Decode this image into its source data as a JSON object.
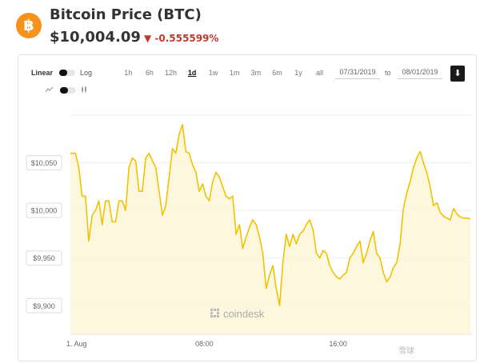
{
  "header": {
    "logo_symbol": "฿",
    "title": "Bitcoin Price (BTC)",
    "price": "$10,004.09",
    "change_arrow": "▼",
    "change": "-0.555599%",
    "change_color": "#c0392b",
    "brand_color": "#f7931a"
  },
  "controls": {
    "scale_linear": "Linear",
    "scale_log": "Log",
    "chart_type_icons": [
      "line-chart-icon",
      "candlestick-icon"
    ],
    "ranges": [
      "1h",
      "6h",
      "12h",
      "1d",
      "1w",
      "1m",
      "3m",
      "6m",
      "1y",
      "all"
    ],
    "active_range": "1d",
    "date_from": "07/31/2019",
    "date_to_label": "to",
    "date_to": "08/01/2019",
    "download_icon": "download-icon"
  },
  "watermark": "coindesk",
  "corner_mark": "雪球",
  "chart_data": {
    "type": "area",
    "title": "",
    "xlabel": "",
    "ylabel": "",
    "line_color": "#f2c200",
    "fill_color": "#fdf6d8",
    "x_ticks": [
      "1. Aug",
      "08:00",
      "16:00"
    ],
    "y_ticks": [
      "$9,900",
      "$9,950",
      "$10,000",
      "$10,050"
    ],
    "y_tick_values": [
      9900,
      9950,
      10000,
      10050
    ],
    "ylim": [
      9870,
      10100
    ],
    "x_range_hours": [
      0,
      24
    ],
    "grid": true,
    "series": [
      {
        "x": [
          0,
          0.3,
          0.5,
          0.7,
          0.9,
          1.1,
          1.3,
          1.5,
          1.7,
          1.9,
          2.1,
          2.3,
          2.5,
          2.7,
          2.9,
          3.1,
          3.3,
          3.5,
          3.7,
          3.9,
          4.1,
          4.3,
          4.5,
          4.7,
          4.9,
          5.1,
          5.3,
          5.5,
          5.7,
          5.9,
          6.1,
          6.3,
          6.5,
          6.7,
          6.9,
          7.1,
          7.3,
          7.5,
          7.7,
          7.9,
          8.1,
          8.3,
          8.5,
          8.7,
          8.9,
          9.1,
          9.3,
          9.5,
          9.7,
          9.9,
          10.1,
          10.3,
          10.5,
          10.7,
          10.9,
          11.1,
          11.3,
          11.5,
          11.7,
          11.9,
          12.1,
          12.3,
          12.5,
          12.7,
          12.9,
          13.1,
          13.3,
          13.5,
          13.7,
          13.9,
          14.1,
          14.3,
          14.5,
          14.7,
          14.9,
          15.1,
          15.3,
          15.5,
          15.7,
          15.9,
          16.1,
          16.3,
          16.5,
          16.7,
          16.9,
          17.1,
          17.3,
          17.5,
          17.7,
          17.9,
          18.1,
          18.3,
          18.5,
          18.7,
          18.9,
          19.1,
          19.3,
          19.5,
          19.7,
          19.9,
          20.1,
          20.3,
          20.5,
          20.7,
          20.9,
          21.1,
          21.3,
          21.5,
          21.7,
          21.9,
          22.1,
          22.3,
          22.5,
          22.7,
          22.9,
          23.1,
          23.3,
          23.5,
          23.7,
          23.9
        ],
        "y": [
          10060,
          10060,
          10045,
          10015,
          10015,
          9968,
          9995,
          10000,
          10010,
          9985,
          10010,
          10010,
          9988,
          9988,
          10010,
          10010,
          10000,
          10045,
          10055,
          10052,
          10020,
          10020,
          10055,
          10060,
          10052,
          10045,
          10020,
          9995,
          10005,
          10035,
          10065,
          10060,
          10080,
          10090,
          10062,
          10060,
          10048,
          10040,
          10020,
          10028,
          10015,
          10010,
          10030,
          10040,
          10035,
          10025,
          10015,
          10012,
          10015,
          9975,
          9985,
          9960,
          9972,
          9982,
          9990,
          9985,
          9972,
          9955,
          9918,
          9932,
          9942,
          9918,
          9900,
          9945,
          9975,
          9962,
          9975,
          9965,
          9975,
          9978,
          9985,
          9990,
          9980,
          9955,
          9950,
          9958,
          9955,
          9942,
          9935,
          9930,
          9928,
          9932,
          9935,
          9950,
          9955,
          9962,
          9968,
          9945,
          9955,
          9968,
          9978,
          9955,
          9950,
          9935,
          9925,
          9930,
          9940,
          9945,
          9965,
          10002,
          10018,
          10030,
          10045,
          10055,
          10062,
          10050,
          10040,
          10025,
          10005,
          10008,
          9998,
          9994,
          9992,
          9990,
          10002,
          9996,
          9993,
          9992,
          9992,
          9991
        ]
      }
    ]
  }
}
